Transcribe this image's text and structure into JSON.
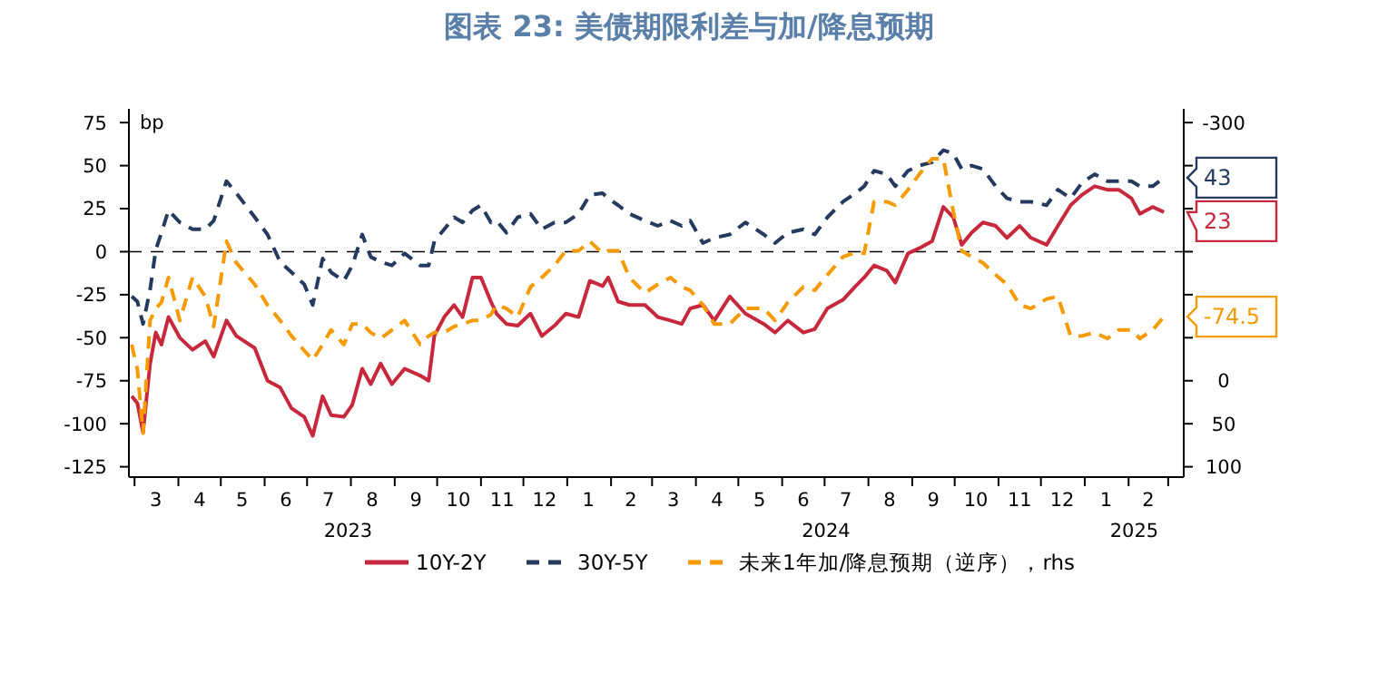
{
  "chart_data": {
    "type": "line",
    "title": "图表 23: 美债期限利差与加/降息预期",
    "ylabel": "bp",
    "x": [
      "2023-02-27",
      "2023-03-03",
      "2023-03-07",
      "2023-03-12",
      "2023-03-16",
      "2023-03-20",
      "2023-03-25",
      "2023-04-02",
      "2023-04-11",
      "2023-04-20",
      "2023-04-26",
      "2023-05-05",
      "2023-05-12",
      "2023-05-25",
      "2023-06-03",
      "2023-06-12",
      "2023-06-20",
      "2023-06-29",
      "2023-07-05",
      "2023-07-12",
      "2023-07-18",
      "2023-07-27",
      "2023-08-02",
      "2023-08-09",
      "2023-08-15",
      "2023-08-22",
      "2023-08-30",
      "2023-09-08",
      "2023-09-19",
      "2023-09-25",
      "2023-09-29",
      "2023-10-06",
      "2023-10-13",
      "2023-10-19",
      "2023-10-26",
      "2023-11-01",
      "2023-11-08",
      "2023-11-12",
      "2023-11-19",
      "2023-11-27",
      "2023-12-06",
      "2023-12-14",
      "2023-12-23",
      "2023-12-31",
      "2024-01-09",
      "2024-01-17",
      "2024-01-26",
      "2024-01-30",
      "2024-02-06",
      "2024-02-14",
      "2024-02-25",
      "2024-03-05",
      "2024-03-14",
      "2024-03-22",
      "2024-03-28",
      "2024-04-06",
      "2024-04-14",
      "2024-04-25",
      "2024-05-06",
      "2024-05-19",
      "2024-05-27",
      "2024-06-05",
      "2024-06-16",
      "2024-06-24",
      "2024-07-03",
      "2024-07-14",
      "2024-07-23",
      "2024-07-29",
      "2024-08-05",
      "2024-08-14",
      "2024-08-20",
      "2024-08-29",
      "2024-09-06",
      "2024-09-15",
      "2024-09-23",
      "2024-09-30",
      "2024-10-06",
      "2024-10-13",
      "2024-10-21",
      "2024-10-30",
      "2024-11-07",
      "2024-11-16",
      "2024-11-24",
      "2024-12-05",
      "2024-12-13",
      "2024-12-22",
      "2024-12-30",
      "2025-01-08",
      "2025-01-17",
      "2025-01-25",
      "2025-02-03",
      "2025-02-09",
      "2025-02-18",
      "2025-02-26"
    ],
    "series": [
      {
        "name": "10Y-2Y",
        "color": "#c8283c",
        "line_style": "solid",
        "values": [
          -84,
          -88,
          -105,
          -65,
          -47,
          -54,
          -38,
          -50,
          -57,
          -52,
          -61,
          -40,
          -49,
          -56,
          -75,
          -79,
          -91,
          -96,
          -107,
          -84,
          -95,
          -96,
          -89,
          -68,
          -77,
          -65,
          -77,
          -68,
          -72,
          -75,
          -49,
          -38,
          -31,
          -38,
          -15,
          -15,
          -29,
          -36,
          -42,
          -43,
          -36,
          -49,
          -43,
          -36,
          -38,
          -17,
          -20,
          -15,
          -29,
          -31,
          -31,
          -38,
          -40,
          -42,
          -33,
          -31,
          -40,
          -26,
          -36,
          -42,
          -47,
          -40,
          -47,
          -45,
          -33,
          -28,
          -20,
          -15,
          -8,
          -11,
          -18,
          -1,
          2,
          6,
          26,
          20,
          4,
          11,
          17,
          15,
          8,
          15,
          8,
          4,
          15,
          27,
          33,
          38,
          36,
          36,
          31,
          22,
          26,
          23
        ],
        "value_labels": [
          null,
          null,
          null,
          null,
          null,
          null,
          null,
          null,
          null,
          null,
          null,
          null,
          null,
          null,
          null,
          null,
          null,
          null,
          null,
          null,
          null,
          null,
          null,
          null,
          null,
          null,
          null,
          null,
          null,
          null,
          null,
          null,
          null,
          null,
          null,
          null,
          null,
          null,
          null,
          null,
          null,
          null,
          null,
          null,
          null,
          null,
          null,
          null,
          null,
          null,
          null,
          null,
          null,
          null,
          null,
          null,
          null,
          null,
          null,
          null,
          null,
          null,
          null,
          null,
          null,
          null,
          null,
          null,
          null,
          null,
          null,
          null,
          null,
          null,
          null,
          null,
          null,
          null,
          null,
          null,
          null,
          null,
          null,
          null,
          null,
          null,
          null,
          null,
          null,
          null,
          null,
          null,
          null,
          "23"
        ]
      },
      {
        "name": "30Y-5Y",
        "color": "#243a5e",
        "line_style": "dashed",
        "values": [
          -26,
          -29,
          -42,
          -22,
          1,
          11,
          24,
          17,
          13,
          13,
          18,
          41,
          34,
          20,
          10,
          -6,
          -12,
          -19,
          -31,
          -4,
          -12,
          -17,
          -8,
          10,
          -3,
          -6,
          -8,
          -1,
          -8,
          -8,
          6,
          13,
          20,
          17,
          24,
          27,
          17,
          18,
          11,
          20,
          22,
          13,
          17,
          17,
          22,
          33,
          34,
          31,
          27,
          22,
          18,
          15,
          18,
          15,
          18,
          5,
          8,
          10,
          17,
          10,
          5,
          11,
          13,
          10,
          20,
          29,
          34,
          38,
          47,
          45,
          38,
          47,
          50,
          52,
          59,
          57,
          48,
          50,
          48,
          38,
          31,
          29,
          29,
          27,
          36,
          31,
          40,
          45,
          41,
          41,
          41,
          38,
          38,
          43
        ],
        "value_labels": [
          null,
          null,
          null,
          null,
          null,
          null,
          null,
          null,
          null,
          null,
          null,
          null,
          null,
          null,
          null,
          null,
          null,
          null,
          null,
          null,
          null,
          null,
          null,
          null,
          null,
          null,
          null,
          null,
          null,
          null,
          null,
          null,
          null,
          null,
          null,
          null,
          null,
          null,
          null,
          null,
          null,
          null,
          null,
          null,
          null,
          null,
          null,
          null,
          null,
          null,
          null,
          null,
          null,
          null,
          null,
          null,
          null,
          null,
          null,
          null,
          null,
          null,
          null,
          null,
          null,
          null,
          null,
          null,
          null,
          null,
          null,
          null,
          null,
          null,
          null,
          null,
          null,
          null,
          null,
          null,
          null,
          null,
          null,
          null,
          null,
          null,
          null,
          null,
          null,
          null,
          null,
          null,
          null,
          "43"
        ]
      },
      {
        "name": "未来1年加/降息预期（逆序），rhs",
        "color": "#f59a00",
        "line_style": "dashed",
        "axis": "y2",
        "values": [
          -42,
          -13,
          61,
          -70,
          -84,
          -91,
          -120,
          -70,
          -120,
          -98,
          -63,
          -162,
          -137,
          -112,
          -88,
          -70,
          -52,
          -35,
          -24,
          -42,
          -59,
          -42,
          -66,
          -66,
          -56,
          -49,
          -59,
          -70,
          -42,
          -52,
          -56,
          -56,
          -63,
          -66,
          -70,
          -70,
          -77,
          -88,
          -84,
          -74,
          -109,
          -120,
          -134,
          -151,
          -151,
          -162,
          -148,
          -151,
          -151,
          -120,
          -102,
          -112,
          -120,
          -109,
          -105,
          -88,
          -66,
          -66,
          -84,
          -84,
          -70,
          -91,
          -109,
          -105,
          -123,
          -144,
          -149,
          -148,
          -208,
          -208,
          -204,
          -222,
          -240,
          -258,
          -258,
          -197,
          -151,
          -144,
          -137,
          -123,
          -112,
          -88,
          -84,
          -95,
          -98,
          -52,
          -52,
          -56,
          -49,
          -59,
          -59,
          -49,
          -59,
          -74.5
        ],
        "value_labels": [
          null,
          null,
          null,
          null,
          null,
          null,
          null,
          null,
          null,
          null,
          null,
          null,
          null,
          null,
          null,
          null,
          null,
          null,
          null,
          null,
          null,
          null,
          null,
          null,
          null,
          null,
          null,
          null,
          null,
          null,
          null,
          null,
          null,
          null,
          null,
          null,
          null,
          null,
          null,
          null,
          null,
          null,
          null,
          null,
          null,
          null,
          null,
          null,
          null,
          null,
          null,
          null,
          null,
          null,
          null,
          null,
          null,
          null,
          null,
          null,
          null,
          null,
          null,
          null,
          null,
          null,
          null,
          null,
          null,
          null,
          null,
          null,
          null,
          null,
          null,
          null,
          null,
          null,
          null,
          null,
          null,
          null,
          null,
          null,
          null,
          null,
          null,
          null,
          null,
          null,
          null,
          null,
          null,
          "-74.5"
        ]
      }
    ],
    "xlim": [
      "2023-02-25",
      "2025-03-12"
    ],
    "xticks": [
      {
        "value": "2023-03-01",
        "label": null
      },
      {
        "value": "2023-03-16",
        "label": "3"
      },
      {
        "value": "2023-04-01",
        "label": null
      },
      {
        "value": "2023-04-16",
        "label": "4"
      },
      {
        "value": "2023-05-01",
        "label": null
      },
      {
        "value": "2023-05-16",
        "label": "5"
      },
      {
        "value": "2023-06-01",
        "label": null
      },
      {
        "value": "2023-06-16",
        "label": "6"
      },
      {
        "value": "2023-07-01",
        "label": null
      },
      {
        "value": "2023-07-16",
        "label": "7"
      },
      {
        "value": "2023-08-01",
        "label": null
      },
      {
        "value": "2023-08-16",
        "label": "8"
      },
      {
        "value": "2023-09-01",
        "label": null
      },
      {
        "value": "2023-09-16",
        "label": "9"
      },
      {
        "value": "2023-10-01",
        "label": null
      },
      {
        "value": "2023-10-16",
        "label": "10"
      },
      {
        "value": "2023-11-01",
        "label": null
      },
      {
        "value": "2023-11-16",
        "label": "11"
      },
      {
        "value": "2023-12-01",
        "label": null
      },
      {
        "value": "2023-12-16",
        "label": "12"
      },
      {
        "value": "2024-01-01",
        "label": null
      },
      {
        "value": "2024-01-16",
        "label": "1"
      },
      {
        "value": "2024-02-01",
        "label": null
      },
      {
        "value": "2024-02-15",
        "label": "2"
      },
      {
        "value": "2024-03-01",
        "label": null
      },
      {
        "value": "2024-03-16",
        "label": "3"
      },
      {
        "value": "2024-04-01",
        "label": null
      },
      {
        "value": "2024-04-16",
        "label": "4"
      },
      {
        "value": "2024-05-01",
        "label": null
      },
      {
        "value": "2024-05-16",
        "label": "5"
      },
      {
        "value": "2024-06-01",
        "label": null
      },
      {
        "value": "2024-06-16",
        "label": "6"
      },
      {
        "value": "2024-07-01",
        "label": null
      },
      {
        "value": "2024-07-16",
        "label": "7"
      },
      {
        "value": "2024-08-01",
        "label": null
      },
      {
        "value": "2024-08-16",
        "label": "8"
      },
      {
        "value": "2024-09-01",
        "label": null
      },
      {
        "value": "2024-09-16",
        "label": "9"
      },
      {
        "value": "2024-10-01",
        "label": null
      },
      {
        "value": "2024-10-16",
        "label": "10"
      },
      {
        "value": "2024-11-01",
        "label": null
      },
      {
        "value": "2024-11-16",
        "label": "11"
      },
      {
        "value": "2024-12-01",
        "label": null
      },
      {
        "value": "2024-12-16",
        "label": "12"
      },
      {
        "value": "2025-01-01",
        "label": null
      },
      {
        "value": "2025-01-16",
        "label": "1"
      },
      {
        "value": "2025-02-01",
        "label": null
      },
      {
        "value": "2025-02-15",
        "label": "2"
      },
      {
        "value": "2025-03-01",
        "label": null
      }
    ],
    "annotations": [
      "2023",
      "2024",
      "2025"
    ],
    "ylim": [
      -131,
      83
    ],
    "yticks": [
      -125,
      -100,
      -75,
      -50,
      -25,
      0,
      25,
      50,
      75
    ],
    "y2lim": [
      112,
      -316
    ],
    "y2ticks": [
      -300,
      {
        "value": -250,
        "label": null
      },
      {
        "value": -200,
        "label": null
      },
      {
        "value": -150,
        "label": null
      },
      {
        "value": -100,
        "label": null
      },
      {
        "value": -50,
        "label": null
      },
      0,
      50,
      100
    ],
    "ref_lines": [
      {
        "axis": "y",
        "value": 0,
        "color": "#000000",
        "line_style": "dashed"
      }
    ],
    "grid": false,
    "legend": "bottom"
  }
}
